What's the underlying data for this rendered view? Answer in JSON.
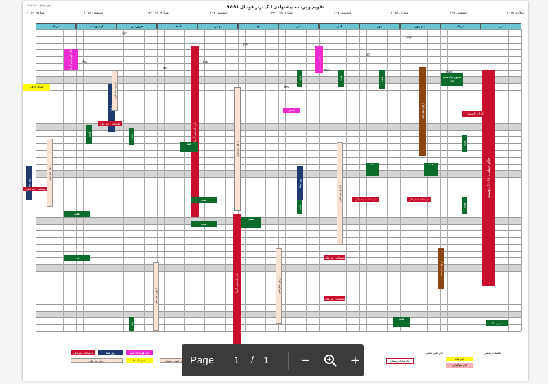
{
  "document": {
    "title": "تقویم و برنامه پیشنهادی لیگ برتر فوتبال ۹۸-۹۷",
    "issue_date": "تاریخ ارسال ۱۳۹۷/۰۴/۰۳",
    "year_labels": [
      "۲۰۱۸ میلادی",
      "۱۳۹۷ شمسی",
      "۲۰۱۸ میلادی",
      "۱۳۹۷ شمسی",
      "۲۰۱۹-۲۰۱۸ میلادی",
      "۱۳۹۷ شمسی",
      "۲۰۱۹-۲۰۱۸ میلادی",
      "۱۳۹۸ شمسی",
      "۲۰۱۹ میلادی"
    ],
    "months": [
      "تیر",
      "مرداد",
      "شهریور",
      "مهر",
      "آبان",
      "آذر",
      "دی",
      "بهمن",
      "اسفند",
      "فروردین",
      "اردیبهشت",
      "خرداد"
    ],
    "gregorian_months": [
      "Aug",
      "Sep",
      "Oct",
      "Nov",
      "Dec",
      "Jan",
      "Feb",
      "Mar",
      "Apr",
      "May"
    ],
    "blocks": {
      "wc": "جام جهانی ۲۰۱۸ روسیه",
      "asia": "جام ملت‌های آسیا",
      "iran_spain": "ایران - اسپانیا",
      "super_cup": "سوپر لیگ",
      "league_start": "شروع لیگ هفته اول",
      "camp": "اردوی تیم ملی",
      "friendly": "دوستانه - تیم ملی",
      "fifa_day": "روز فیفا",
      "week": "هفته",
      "hazfi": "حذفی",
      "hazfi_final": "فینال حذفی",
      "rest": "استراحت",
      "asian_cl": "لیگ قهرمانان آسیا",
      "leisure": "تعطیلات"
    },
    "legend": {
      "official": "تعطیلات رسمی",
      "league_days": "ایام لیگ",
      "camp_days": "ایام سوگواری",
      "change_days": "ایام تغییر تعطیل",
      "ramadan": "ماه مبارک رمضان",
      "camp_legend": "اردوی تیم ملی امید",
      "friendly_legend": "دوستانه - تیم ملی",
      "fifa_legend": "روز فیفا",
      "asian_legend": "لیگ قهرمانان آسیا",
      "national_legend": "اردوی تیم ملی",
      "cup_legend": "جام ملت‌ها",
      "youth_legend": "اردوی تیم ملی امید / جوانان"
    }
  },
  "toolbar": {
    "page_label": "Page",
    "current_page": "1",
    "separator": "/",
    "total_pages": "1",
    "zoom_out": "−",
    "zoom_in": "+"
  },
  "colors": {
    "header": "#69c7d4",
    "red": "#c8102e",
    "green": "#0b6b2d",
    "brown": "#8b4513",
    "navy": "#1e3a6e",
    "magenta": "#ee2bd0",
    "yellow": "#ffff00",
    "pink": "#f8b0b0",
    "shade": "#d5d5d5"
  }
}
